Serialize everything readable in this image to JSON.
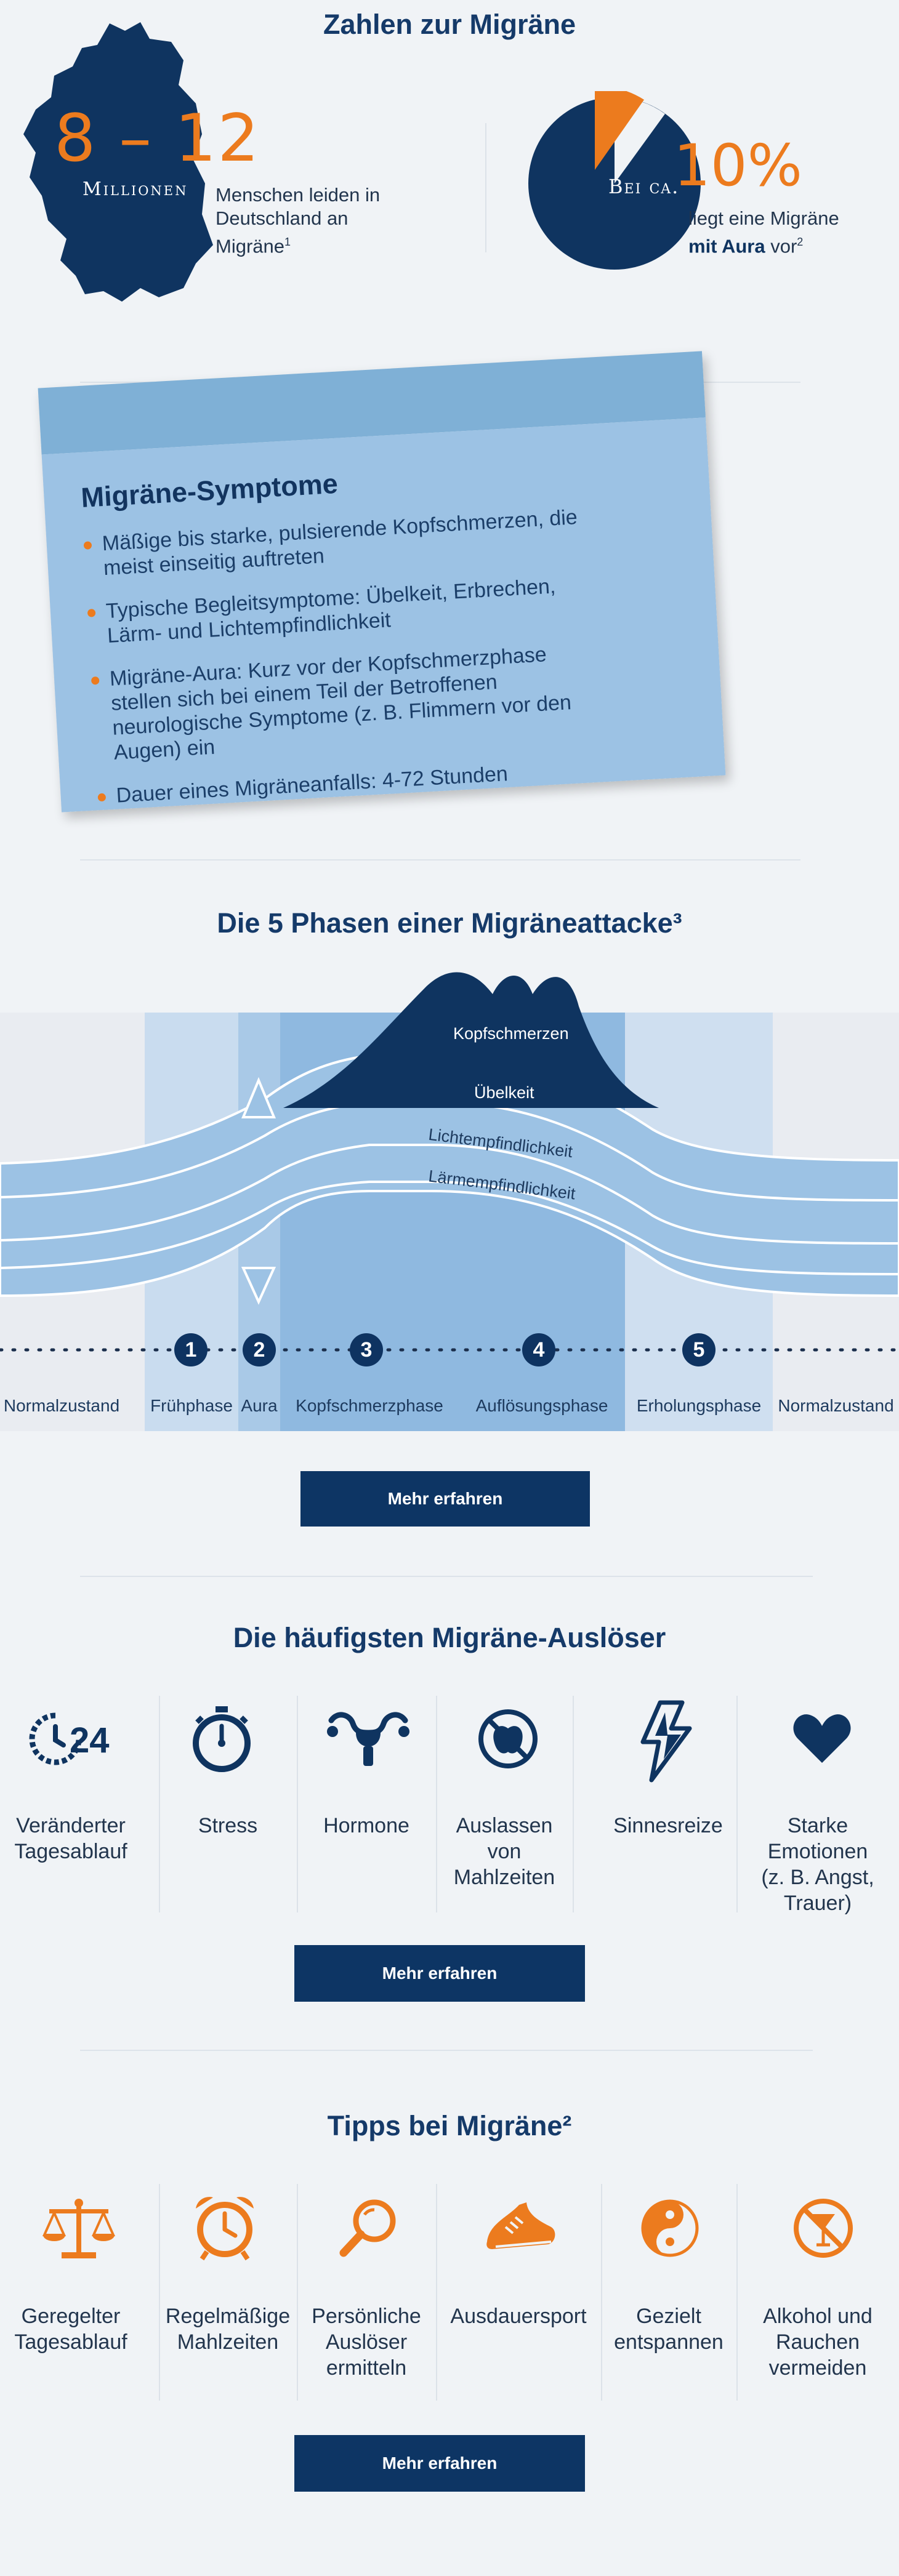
{
  "colors": {
    "navy": "#0f3460",
    "orange": "#ec7b1e",
    "lightblue": "#9cc2e4"
  },
  "stats": {
    "title": "Zahlen zur Migräne",
    "big_number": "8 – 12",
    "big_number_unit": "Millionen",
    "big_number_text": "Menschen leiden in Deutschland an Migräne",
    "big_number_sup": "1",
    "pie_label": "Bei ca.",
    "pie_percent": "10%",
    "pie_value": 10,
    "pie_text1": "liegt eine Migräne",
    "pie_text2_bold": "mit Aura",
    "pie_text2": " vor",
    "pie_sup": "2"
  },
  "symptoms": {
    "title": "Migräne-Symptome",
    "items": [
      "Mäßige bis starke, pulsierende Kopfschmerzen, die meist einseitig auftreten",
      "Typische Begleitsymptome: Übelkeit, Erbrechen, Lärm- und Lichtempfindlichkeit",
      "Migräne-Aura: Kurz vor der Kopfschmerzphase stellen sich bei einem Teil der Betroffenen neurologische Symptome (z. B. Flimmern vor den Augen) ein",
      "Dauer eines Migräneanfalls: 4-72 Stunden"
    ]
  },
  "phases": {
    "title": "Die 5 Phasen einer Migräneattacke³",
    "curve_labels": [
      "Kopfschmerzen",
      "Übelkeit",
      "Lichtempfindlichkeit",
      "Lärmempfindlichkeit"
    ],
    "numbers": [
      "1",
      "2",
      "3",
      "4",
      "5"
    ],
    "labels": [
      "Normalzustand",
      "Frühphase",
      "Aura",
      "Kopfschmerzphase",
      "Auflösungsphase",
      "Erholungsphase",
      "Normalzustand"
    ],
    "button": "Mehr erfahren"
  },
  "triggers": {
    "title": "Die häufigsten Migräne-Auslöser",
    "items": [
      {
        "icon": "clock-24-icon",
        "lines": [
          "Veränderter",
          "Tagesablauf"
        ]
      },
      {
        "icon": "stopwatch-icon",
        "lines": [
          "Stress"
        ]
      },
      {
        "icon": "uterus-icon",
        "lines": [
          "Hormone"
        ]
      },
      {
        "icon": "no-apple-icon",
        "lines": [
          "Auslassen",
          "von Mahlzeiten"
        ]
      },
      {
        "icon": "lightning-icon",
        "lines": [
          "Sinnesreize"
        ]
      },
      {
        "icon": "heart-icon",
        "lines": [
          "Starke Emotionen",
          "(z. B. Angst,",
          "Trauer)"
        ]
      }
    ],
    "button": "Mehr erfahren"
  },
  "tips": {
    "title": "Tipps bei Migräne²",
    "items": [
      {
        "icon": "scales-icon",
        "lines": [
          "Geregelter",
          "Tagesablauf"
        ]
      },
      {
        "icon": "alarm-clock-icon",
        "lines": [
          "Regelmäßige",
          "Mahlzeiten"
        ]
      },
      {
        "icon": "magnifier-icon",
        "lines": [
          "Persönliche",
          "Auslöser",
          "ermitteln"
        ]
      },
      {
        "icon": "running-shoe-icon",
        "lines": [
          "Ausdauersport"
        ]
      },
      {
        "icon": "yin-yang-icon",
        "lines": [
          "Gezielt",
          "entspannen"
        ]
      },
      {
        "icon": "no-drinks-icon",
        "lines": [
          "Alkohol und",
          "Rauchen",
          "vermeiden"
        ]
      }
    ],
    "button": "Mehr erfahren"
  }
}
